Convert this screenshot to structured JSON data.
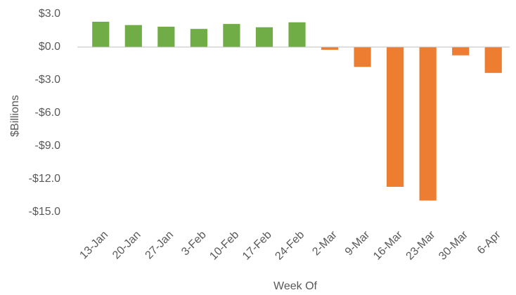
{
  "chart_data": {
    "type": "bar",
    "x_label": "Week Of",
    "y_label": "$Billions",
    "categories": [
      "13-Jan",
      "20-Jan",
      "27-Jan",
      "3-Feb",
      "10-Feb",
      "17-Feb",
      "24-Feb",
      "2-Mar",
      "9-Mar",
      "16-Mar",
      "23-Mar",
      "30-Mar",
      "6-Apr"
    ],
    "values": [
      2.3,
      2.0,
      1.85,
      1.65,
      2.1,
      1.8,
      2.25,
      -0.25,
      -1.8,
      -12.7,
      -13.95,
      -0.75,
      -2.35
    ],
    "colors": [
      "#70ad47",
      "#70ad47",
      "#70ad47",
      "#70ad47",
      "#70ad47",
      "#70ad47",
      "#70ad47",
      "#ed7d31",
      "#ed7d31",
      "#ed7d31",
      "#ed7d31",
      "#ed7d31",
      "#ed7d31"
    ],
    "ylim": [
      -15,
      3
    ],
    "yticks": [
      {
        "value": -15,
        "label": "-$15.0"
      },
      {
        "value": -12,
        "label": "-$12.0"
      },
      {
        "value": -9,
        "label": "-$9.0"
      },
      {
        "value": -6,
        "label": "-$6.0"
      },
      {
        "value": -3,
        "label": "-$3.0"
      },
      {
        "value": 0,
        "label": "$0.0"
      },
      {
        "value": 3,
        "label": "$3.0"
      }
    ],
    "grid": false
  }
}
